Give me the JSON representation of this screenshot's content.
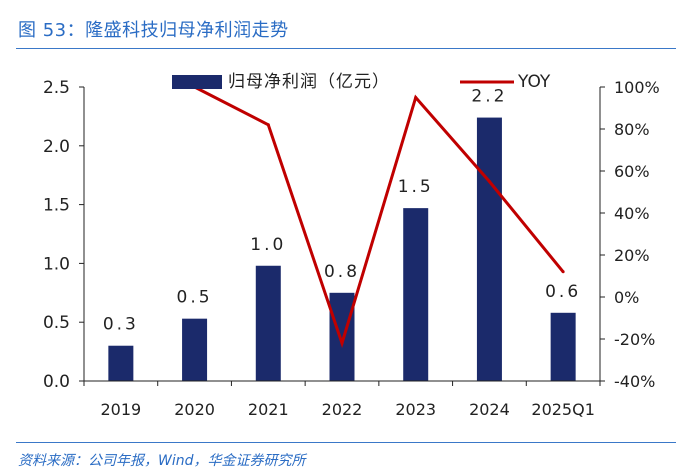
{
  "figure": {
    "title": "图 53：隆盛科技归母净利润走势",
    "source": "资料来源：公司年报，Wind，华金证券研究所"
  },
  "colors": {
    "bar": "#1b2a6b",
    "line": "#c00000",
    "axis": "#222222",
    "title": "#2a6cc4"
  },
  "chart_data": {
    "type": "bar",
    "categories": [
      "2019",
      "2020",
      "2021",
      "2022",
      "2023",
      "2024",
      "2025Q1"
    ],
    "series": [
      {
        "name": "归母净利润（亿元）",
        "type": "bar",
        "axis": "left",
        "values": [
          0.3,
          0.53,
          0.98,
          0.75,
          1.47,
          2.24,
          0.58
        ],
        "labels": [
          "0.3",
          "0.5",
          "1.0",
          "0.8",
          "1.5",
          "2.2",
          "0.6"
        ]
      },
      {
        "name": "YOY",
        "type": "line",
        "axis": "right",
        "values": [
          null,
          100,
          82,
          -22,
          95,
          55,
          12
        ]
      }
    ],
    "yleft": {
      "ylim": [
        0,
        2.5
      ],
      "ticks": [
        "0.0",
        "0.5",
        "1.0",
        "1.5",
        "2.0",
        "2.5"
      ]
    },
    "yright": {
      "ylim": [
        -40,
        100
      ],
      "ticks": [
        "-40%",
        "-20%",
        "0%",
        "20%",
        "40%",
        "60%",
        "80%",
        "100%"
      ]
    },
    "legend": "top",
    "grid": false
  }
}
